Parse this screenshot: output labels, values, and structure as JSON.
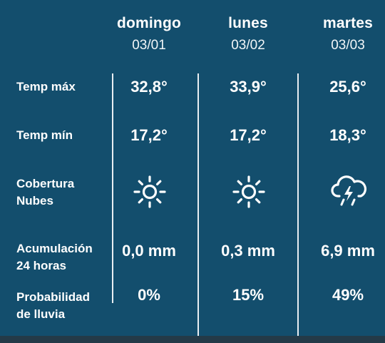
{
  "days": [
    {
      "name": "domingo",
      "date": "03/01",
      "temp_max": "32,8°",
      "temp_min": "17,2°",
      "cloud_icon": "sun-icon",
      "accum": "0,0 mm",
      "prob": "0%"
    },
    {
      "name": "lunes",
      "date": "03/02",
      "temp_max": "33,9°",
      "temp_min": "17,2°",
      "cloud_icon": "sun-icon",
      "accum": "0,3 mm",
      "prob": "15%"
    },
    {
      "name": "martes",
      "date": "03/03",
      "temp_max": "25,6°",
      "temp_min": "18,3°",
      "cloud_icon": "thunderstorm-icon",
      "accum": "6,9 mm",
      "prob": "49%"
    }
  ],
  "labels": {
    "temp_max": "Temp máx",
    "temp_min": "Temp mín",
    "cloud_line1": "Cobertura",
    "cloud_line2": "Nubes",
    "accum_line1": "Acumulación",
    "accum_line2": "24 horas",
    "prob_line1": "Probabilidad",
    "prob_line2": "de lluvia"
  },
  "colors": {
    "background": "#134e6d",
    "text": "#ffffff",
    "bottom_bar": "#243a48"
  }
}
